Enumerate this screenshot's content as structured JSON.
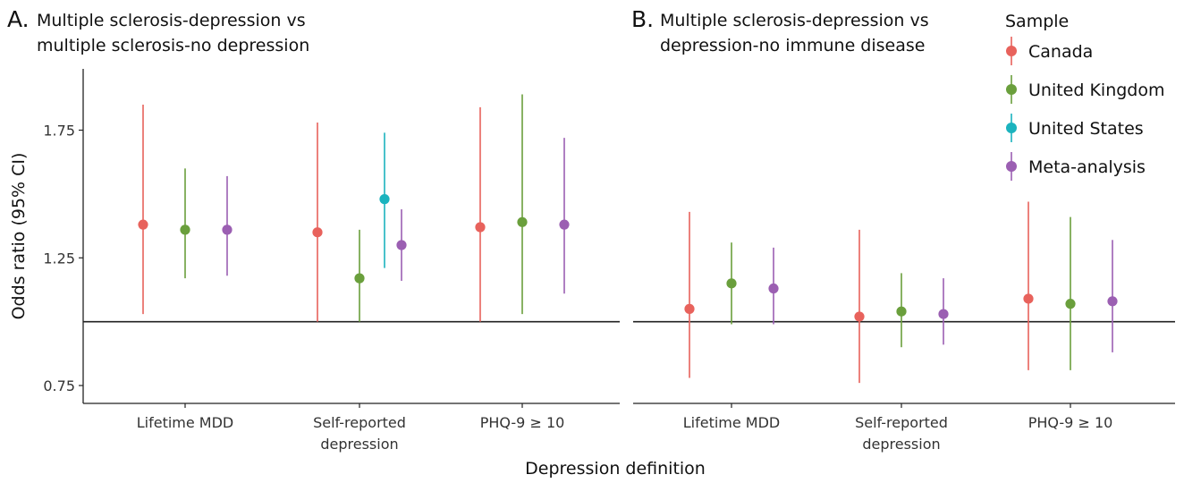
{
  "chart_data": [
    {
      "type": "scatter",
      "panel_letter": "A.",
      "title": "Multiple sclerosis-depression vs multiple sclerosis-no depression",
      "title_lines": [
        "Multiple sclerosis-depression vs",
        "multiple sclerosis-no depression"
      ],
      "xlabel": "Depression definition",
      "ylabel": "Odds ratio (95% CI)",
      "categories": [
        [
          "Lifetime MDD"
        ],
        [
          "Self-reported",
          "depression"
        ],
        [
          "PHQ-9 ≥ 10"
        ]
      ],
      "y_ticks": [
        "0.75",
        "1.25",
        "1.75"
      ],
      "y_tick_values": [
        0.75,
        1.25,
        1.75
      ],
      "ylim": [
        0.68,
        1.99
      ],
      "reference_line": 1.0,
      "series": [
        {
          "name": "Canada",
          "color": "#E8625C",
          "points": [
            {
              "category": 0,
              "or": 1.38,
              "lo": 1.03,
              "hi": 1.85
            },
            {
              "category": 1,
              "or": 1.35,
              "lo": 1.0,
              "hi": 1.78
            },
            {
              "category": 2,
              "or": 1.37,
              "lo": 1.0,
              "hi": 1.84
            }
          ]
        },
        {
          "name": "United Kingdom",
          "color": "#6A9F3C",
          "points": [
            {
              "category": 0,
              "or": 1.36,
              "lo": 1.17,
              "hi": 1.6
            },
            {
              "category": 1,
              "or": 1.17,
              "lo": 1.0,
              "hi": 1.36
            },
            {
              "category": 2,
              "or": 1.39,
              "lo": 1.03,
              "hi": 1.89
            }
          ]
        },
        {
          "name": "United States",
          "color": "#1BB3BE",
          "points": [
            {
              "category": 1,
              "or": 1.48,
              "lo": 1.21,
              "hi": 1.74
            }
          ]
        },
        {
          "name": "Meta-analysis",
          "color": "#9B5FB2",
          "points": [
            {
              "category": 0,
              "or": 1.36,
              "lo": 1.18,
              "hi": 1.57
            },
            {
              "category": 1,
              "or": 1.3,
              "lo": 1.16,
              "hi": 1.44
            },
            {
              "category": 2,
              "or": 1.38,
              "lo": 1.11,
              "hi": 1.72
            }
          ]
        }
      ]
    },
    {
      "type": "scatter",
      "panel_letter": "B.",
      "title": "Multiple sclerosis-depression vs depression-no immune disease",
      "title_lines": [
        "Multiple sclerosis-depression vs",
        "depression-no immune disease"
      ],
      "xlabel": "Depression definition",
      "ylabel": "",
      "categories": [
        [
          "Lifetime MDD"
        ],
        [
          "Self-reported",
          "depression"
        ],
        [
          "PHQ-9 ≥ 10"
        ]
      ],
      "ylim": [
        0.68,
        1.99
      ],
      "reference_line": 1.0,
      "series": [
        {
          "name": "Canada",
          "color": "#E8625C",
          "points": [
            {
              "category": 0,
              "or": 1.05,
              "lo": 0.78,
              "hi": 1.43
            },
            {
              "category": 1,
              "or": 1.02,
              "lo": 0.76,
              "hi": 1.36
            },
            {
              "category": 2,
              "or": 1.09,
              "lo": 0.81,
              "hi": 1.47
            }
          ]
        },
        {
          "name": "United Kingdom",
          "color": "#6A9F3C",
          "points": [
            {
              "category": 0,
              "or": 1.15,
              "lo": 0.99,
              "hi": 1.31
            },
            {
              "category": 1,
              "or": 1.04,
              "lo": 0.9,
              "hi": 1.19
            },
            {
              "category": 2,
              "or": 1.07,
              "lo": 0.81,
              "hi": 1.41
            }
          ]
        },
        {
          "name": "Meta-analysis",
          "color": "#9B5FB2",
          "points": [
            {
              "category": 0,
              "or": 1.13,
              "lo": 0.99,
              "hi": 1.29
            },
            {
              "category": 1,
              "or": 1.03,
              "lo": 0.91,
              "hi": 1.17
            },
            {
              "category": 2,
              "or": 1.08,
              "lo": 0.88,
              "hi": 1.32
            }
          ]
        }
      ]
    }
  ],
  "legend": {
    "title": "Sample",
    "placement": "top-right",
    "items": [
      {
        "name": "Canada",
        "color": "#E8625C"
      },
      {
        "name": "United Kingdom",
        "color": "#6A9F3C"
      },
      {
        "name": "United States",
        "color": "#1BB3BE"
      },
      {
        "name": "Meta-analysis",
        "color": "#9B5FB2"
      }
    ]
  }
}
